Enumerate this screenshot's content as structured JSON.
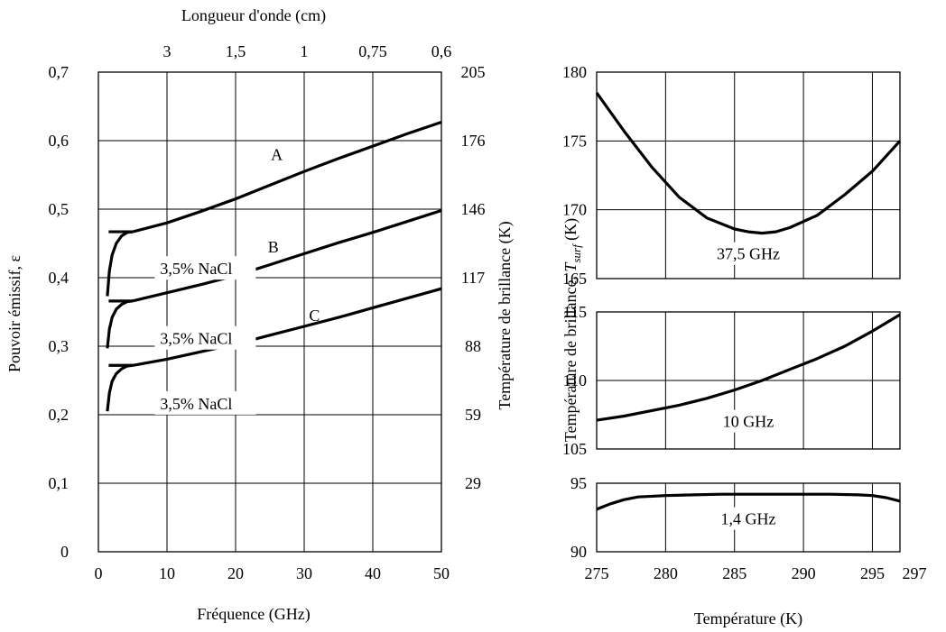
{
  "chart_data": [
    {
      "type": "line",
      "xlabel": "Fréquence (GHz)",
      "ylabel": "Pouvoir émissif, ε",
      "y2label": "Température de brillance (K)",
      "x2label": "Longueur d'onde (cm)",
      "xlim": [
        0,
        50
      ],
      "ylim": [
        0,
        0.7
      ],
      "x_ticks": [
        0,
        10,
        20,
        30,
        40,
        50
      ],
      "x_tick_labels": [
        "0",
        "10",
        "20",
        "30",
        "40",
        "50"
      ],
      "y_ticks": [
        0,
        0.1,
        0.2,
        0.3,
        0.4,
        0.5,
        0.6,
        0.7
      ],
      "y_tick_labels": [
        "0",
        "0,1",
        "0,2",
        "0,3",
        "0,4",
        "0,5",
        "0,6",
        "0,7"
      ],
      "y2_ticks": [
        0.1,
        0.2,
        0.3,
        0.4,
        0.5,
        0.6,
        0.7
      ],
      "y2_tick_labels": [
        "29",
        "59",
        "88",
        "117",
        "146",
        "176",
        "205"
      ],
      "x2_ticks": [
        10,
        20,
        30,
        40,
        50
      ],
      "x2_tick_labels": [
        "3",
        "1,5",
        "1",
        "0,75",
        "0,6"
      ],
      "grid": true,
      "series": [
        {
          "name": "A",
          "x": [
            5,
            10,
            15,
            20,
            25,
            30,
            35,
            40,
            45,
            50
          ],
          "y": [
            0.467,
            0.48,
            0.497,
            0.515,
            0.535,
            0.555,
            0.574,
            0.592,
            0.61,
            0.627
          ],
          "branch": {
            "x": [
              1.3,
              1.6,
              2.0,
              2.6,
              3.4,
              4.2,
              5
            ],
            "y": [
              0.373,
              0.41,
              0.433,
              0.45,
              0.461,
              0.466,
              0.467
            ]
          },
          "flat_start_x": 1.5
        },
        {
          "name": "B",
          "x": [
            5,
            10,
            15,
            20,
            25,
            30,
            35,
            40,
            45,
            50
          ],
          "y": [
            0.366,
            0.378,
            0.39,
            0.403,
            0.419,
            0.435,
            0.451,
            0.466,
            0.482,
            0.498
          ],
          "branch": {
            "x": [
              1.3,
              1.6,
              2.0,
              2.6,
              3.4,
              4.2,
              5
            ],
            "y": [
              0.297,
              0.325,
              0.342,
              0.354,
              0.361,
              0.365,
              0.366
            ]
          },
          "flat_start_x": 1.5
        },
        {
          "name": "C",
          "x": [
            5,
            10,
            15,
            20,
            25,
            30,
            35,
            40,
            45,
            50
          ],
          "y": [
            0.272,
            0.281,
            0.292,
            0.303,
            0.316,
            0.329,
            0.342,
            0.356,
            0.37,
            0.384
          ],
          "branch": {
            "x": [
              1.3,
              1.6,
              2.0,
              2.6,
              3.4,
              4.2,
              5
            ],
            "y": [
              0.205,
              0.232,
              0.249,
              0.26,
              0.267,
              0.271,
              0.272
            ]
          },
          "flat_start_x": 1.5
        }
      ],
      "annotations": [
        {
          "text": "A",
          "x": 26,
          "y": 0.572
        },
        {
          "text": "B",
          "x": 25.5,
          "y": 0.437
        },
        {
          "text": "C",
          "x": 31.5,
          "y": 0.337
        },
        {
          "text": "3,5% NaCl",
          "x": 9,
          "y": 0.405
        },
        {
          "text": "3,5% NaCl",
          "x": 9,
          "y": 0.303
        },
        {
          "text": "3,5% NaCl",
          "x": 9,
          "y": 0.208
        }
      ]
    },
    {
      "type": "line",
      "xlabel": "Température (K)",
      "ylabel": "Température de brillance, T_surf (K)",
      "ylabel_main": "Température de brillance, ",
      "ylabel_italic": "T",
      "ylabel_sub": "surf",
      "ylabel_unit": " (K)",
      "xlim": [
        275,
        297
      ],
      "x_ticks": [
        275,
        280,
        285,
        290,
        295,
        297
      ],
      "x_tick_labels": [
        "275",
        "280",
        "285",
        "290",
        "295",
        "297"
      ],
      "panels": [
        {
          "ylim": [
            165,
            180
          ],
          "y_ticks": [
            165,
            170,
            175,
            180
          ],
          "y_tick_labels": [
            "165",
            "170",
            "175",
            "180"
          ],
          "series": [
            {
              "name": "37,5 GHz",
              "x": [
                275,
                277,
                279,
                281,
                283,
                285,
                286,
                287,
                288,
                289,
                291,
                293,
                295,
                297
              ],
              "y": [
                178.5,
                175.7,
                173.1,
                170.9,
                169.4,
                168.6,
                168.4,
                168.3,
                168.4,
                168.7,
                169.6,
                171.1,
                172.8,
                175.0
              ]
            }
          ],
          "label": {
            "text": "37,5 GHz",
            "x": 286,
            "y": 166.4
          }
        },
        {
          "ylim": [
            105,
            115
          ],
          "y_ticks": [
            105,
            110,
            115
          ],
          "y_tick_labels": [
            "105",
            "110",
            "115"
          ],
          "series": [
            {
              "name": "10 GHz",
              "x": [
                275,
                277,
                279,
                281,
                283,
                285,
                287,
                289,
                291,
                293,
                295,
                297
              ],
              "y": [
                107.1,
                107.4,
                107.8,
                108.2,
                108.7,
                109.3,
                110.0,
                110.8,
                111.6,
                112.5,
                113.6,
                114.8
              ]
            }
          ],
          "label": {
            "text": "10 GHz",
            "x": 286,
            "y": 106.6
          }
        },
        {
          "ylim": [
            90,
            95
          ],
          "y_ticks": [
            90,
            95
          ],
          "y_tick_labels": [
            "90",
            "95"
          ],
          "series": [
            {
              "name": "1,4 GHz",
              "x": [
                275,
                276,
                277,
                278,
                280,
                282,
                284,
                286,
                288,
                290,
                292,
                294,
                295,
                296,
                297
              ],
              "y": [
                93.1,
                93.5,
                93.8,
                94.0,
                94.1,
                94.15,
                94.2,
                94.2,
                94.2,
                94.2,
                94.2,
                94.15,
                94.1,
                93.95,
                93.7
              ]
            }
          ],
          "label": {
            "text": "1,4 GHz",
            "x": 286,
            "y": 92.0
          }
        }
      ]
    }
  ]
}
